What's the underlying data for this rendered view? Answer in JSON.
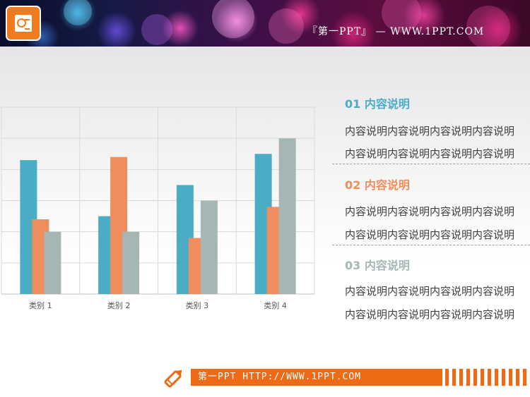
{
  "header": {
    "title": "『第一PPT』 — WWW.1PPT.COM",
    "logo_icon": "presentation-icon",
    "colors": {
      "logo": "#f07a1e"
    }
  },
  "chart_data": {
    "type": "bar",
    "categories": [
      "类别 1",
      "类别 2",
      "类别 3",
      "类别 4"
    ],
    "series": [
      {
        "values": [
          4.3,
          2.5,
          3.5,
          4.5
        ],
        "color": "#4bacc6"
      },
      {
        "values": [
          2.4,
          4.4,
          1.8,
          2.8
        ],
        "color": "#ef8d5d"
      },
      {
        "values": [
          2.0,
          2.0,
          3.0,
          5.0
        ],
        "color": "#a6b6b5"
      }
    ],
    "ylim": [
      0,
      6
    ],
    "grid": true,
    "legend": "none"
  },
  "sections": [
    {
      "heading": "01 内容说明",
      "color": "#4bacc6",
      "lines": [
        "内容说明内容说明内容说明内容说明",
        "内容说明内容说明内容说明内容说明"
      ]
    },
    {
      "heading": "02 内容说明",
      "color": "#ef8d5d",
      "lines": [
        "内容说明内容说明内容说明内容说明",
        "内容说明内容说明内容说明内容说明"
      ]
    },
    {
      "heading": "03 内容说明",
      "color": "#a6b6b5",
      "lines": [
        "内容说明内容说明内容说明内容说明",
        "内容说明内容说明内容说明内容说明"
      ]
    }
  ],
  "footer": {
    "text": "第一PPT HTTP://WWW.1PPT.COM",
    "icon": "pencil-icon",
    "color": "#ef6a14"
  }
}
